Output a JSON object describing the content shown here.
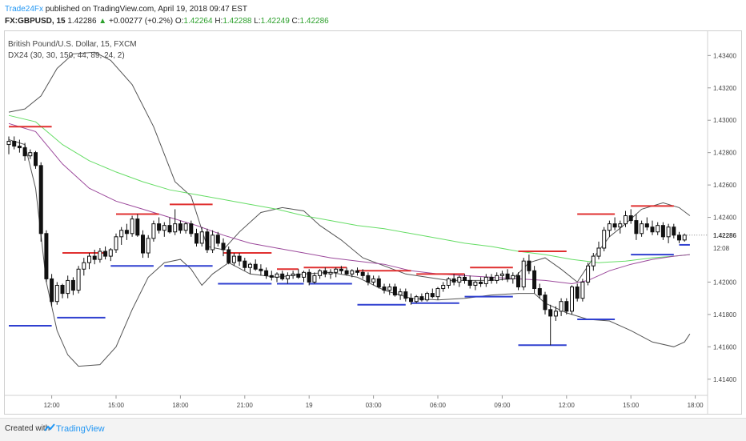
{
  "header": {
    "author": "Trade24Fx",
    "published_text": " published on TradingView.com, April 19, 2018 09:47 EST",
    "symbol": "FX:GBPUSD, 15",
    "last": "1.42286",
    "change": "+0.00277 (+0.2%)",
    "open_label": "O:",
    "open": "1.42264",
    "high_label": "H:",
    "high": "1.42288",
    "low_label": "L:",
    "low": "1.42249",
    "close_label": "C:",
    "close": "1.42286"
  },
  "footer": {
    "created_with": "Created with",
    "brand": "TradingView"
  },
  "chart_data": {
    "type": "candlestick",
    "title": "British Pound/U.S. Dollar, 15, FXCM",
    "indicator": "DX24 (30, 30, 150, 44, 89, 24, 2)",
    "ylim": [
      1.413,
      1.4355
    ],
    "y_ticks": [
      "1.43400",
      "1.43200",
      "1.43000",
      "1.42800",
      "1.42600",
      "1.42400",
      "1.42000",
      "1.41800",
      "1.41600",
      "1.41400"
    ],
    "price_label": "1.42286",
    "time_label": "12:08",
    "x_ticks": [
      "12:00",
      "15:00",
      "18:00",
      "21:00",
      "19",
      "03:00",
      "06:00",
      "09:00",
      "12:00",
      "15:00",
      "18:00"
    ],
    "x_tick_index": [
      8,
      20,
      32,
      44,
      56,
      68,
      80,
      92,
      104,
      116,
      128
    ],
    "colors": {
      "up": "#ffffff",
      "down": "#111111",
      "wick": "#111111",
      "band": "#555555",
      "ema_fast": "#9c4a9c",
      "ema_slow": "#66dd66",
      "resistance": "#e03030",
      "support": "#3040d0"
    },
    "candles": [
      [
        1.4285,
        1.429,
        1.4279,
        1.4287
      ],
      [
        1.4287,
        1.429,
        1.4282,
        1.4284
      ],
      [
        1.4284,
        1.4288,
        1.428,
        1.4283
      ],
      [
        1.4283,
        1.4286,
        1.4275,
        1.4278
      ],
      [
        1.4278,
        1.4282,
        1.4276,
        1.428
      ],
      [
        1.428,
        1.4281,
        1.427,
        1.4272
      ],
      [
        1.4272,
        1.4274,
        1.4225,
        1.423
      ],
      [
        1.423,
        1.4232,
        1.42,
        1.4202
      ],
      [
        1.4202,
        1.4205,
        1.4185,
        1.4188
      ],
      [
        1.4188,
        1.42,
        1.4186,
        1.4198
      ],
      [
        1.4198,
        1.4199,
        1.419,
        1.4193
      ],
      [
        1.4193,
        1.4204,
        1.419,
        1.4201
      ],
      [
        1.4201,
        1.4203,
        1.4192,
        1.4195
      ],
      [
        1.4195,
        1.421,
        1.4193,
        1.4208
      ],
      [
        1.4208,
        1.4215,
        1.4204,
        1.4212
      ],
      [
        1.4212,
        1.4218,
        1.4208,
        1.4216
      ],
      [
        1.4216,
        1.422,
        1.4211,
        1.4214
      ],
      [
        1.4214,
        1.4221,
        1.4212,
        1.4219
      ],
      [
        1.4219,
        1.4222,
        1.4214,
        1.4216
      ],
      [
        1.4216,
        1.4221,
        1.4213,
        1.422
      ],
      [
        1.422,
        1.423,
        1.4218,
        1.4228
      ],
      [
        1.4228,
        1.4234,
        1.4223,
        1.4232
      ],
      [
        1.4232,
        1.4236,
        1.4226,
        1.423
      ],
      [
        1.423,
        1.4241,
        1.4228,
        1.4239
      ],
      [
        1.4239,
        1.4242,
        1.4228,
        1.4229
      ],
      [
        1.4229,
        1.4232,
        1.4215,
        1.4218
      ],
      [
        1.4218,
        1.4229,
        1.4215,
        1.4227
      ],
      [
        1.4227,
        1.4238,
        1.4225,
        1.4236
      ],
      [
        1.4236,
        1.424,
        1.423,
        1.4232
      ],
      [
        1.4232,
        1.4237,
        1.4228,
        1.4235
      ],
      [
        1.4235,
        1.424,
        1.423,
        1.4231
      ],
      [
        1.4231,
        1.4245,
        1.4229,
        1.4236
      ],
      [
        1.4236,
        1.4238,
        1.423,
        1.4232
      ],
      [
        1.4232,
        1.4237,
        1.423,
        1.4236
      ],
      [
        1.4236,
        1.4238,
        1.4228,
        1.423
      ],
      [
        1.423,
        1.4233,
        1.4222,
        1.4224
      ],
      [
        1.4224,
        1.4234,
        1.4222,
        1.4231
      ],
      [
        1.4231,
        1.4233,
        1.4218,
        1.422
      ],
      [
        1.422,
        1.4232,
        1.4218,
        1.4229
      ],
      [
        1.4229,
        1.4231,
        1.4222,
        1.4224
      ],
      [
        1.4224,
        1.4227,
        1.4216,
        1.422
      ],
      [
        1.422,
        1.4222,
        1.4211,
        1.4212
      ],
      [
        1.4212,
        1.4218,
        1.421,
        1.4216
      ],
      [
        1.4216,
        1.4218,
        1.421,
        1.4213
      ],
      [
        1.4213,
        1.4215,
        1.4207,
        1.4209
      ],
      [
        1.4209,
        1.4212,
        1.4205,
        1.4211
      ],
      [
        1.4211,
        1.4214,
        1.4207,
        1.4208
      ],
      [
        1.4208,
        1.4211,
        1.4204,
        1.4207
      ],
      [
        1.4207,
        1.4209,
        1.4202,
        1.4204
      ],
      [
        1.4204,
        1.4207,
        1.4201,
        1.4203
      ],
      [
        1.4203,
        1.4206,
        1.42,
        1.4205
      ],
      [
        1.4205,
        1.4207,
        1.4201,
        1.4202
      ],
      [
        1.4202,
        1.4206,
        1.4199,
        1.4204
      ],
      [
        1.4204,
        1.4207,
        1.4202,
        1.4205
      ],
      [
        1.4205,
        1.4208,
        1.4202,
        1.4203
      ],
      [
        1.4203,
        1.4207,
        1.42,
        1.4206
      ],
      [
        1.4206,
        1.4208,
        1.4198,
        1.42
      ],
      [
        1.42,
        1.4206,
        1.4199,
        1.4204
      ],
      [
        1.4204,
        1.4208,
        1.4202,
        1.4207
      ],
      [
        1.4207,
        1.4209,
        1.4203,
        1.4205
      ],
      [
        1.4205,
        1.4208,
        1.4202,
        1.4206
      ],
      [
        1.4206,
        1.4209,
        1.4203,
        1.4208
      ],
      [
        1.4208,
        1.421,
        1.4205,
        1.4207
      ],
      [
        1.4207,
        1.4209,
        1.4204,
        1.4205
      ],
      [
        1.4205,
        1.4208,
        1.4203,
        1.4207
      ],
      [
        1.4207,
        1.4209,
        1.4204,
        1.4206
      ],
      [
        1.4206,
        1.4208,
        1.4202,
        1.4204
      ],
      [
        1.4204,
        1.4206,
        1.4198,
        1.42
      ],
      [
        1.42,
        1.4204,
        1.4198,
        1.4202
      ],
      [
        1.4202,
        1.4204,
        1.4196,
        1.4197
      ],
      [
        1.4197,
        1.4199,
        1.4193,
        1.4195
      ],
      [
        1.4195,
        1.4199,
        1.4192,
        1.4197
      ],
      [
        1.4197,
        1.4199,
        1.4191,
        1.4192
      ],
      [
        1.4192,
        1.4196,
        1.4189,
        1.4194
      ],
      [
        1.4194,
        1.4196,
        1.4188,
        1.419
      ],
      [
        1.419,
        1.4193,
        1.4186,
        1.4188
      ],
      [
        1.4188,
        1.4192,
        1.4187,
        1.4191
      ],
      [
        1.4191,
        1.4193,
        1.4188,
        1.4189
      ],
      [
        1.4189,
        1.4194,
        1.4188,
        1.4193
      ],
      [
        1.4193,
        1.4196,
        1.419,
        1.4191
      ],
      [
        1.4191,
        1.4197,
        1.4189,
        1.4196
      ],
      [
        1.4196,
        1.42,
        1.4194,
        1.4198
      ],
      [
        1.4198,
        1.4203,
        1.4196,
        1.4202
      ],
      [
        1.4202,
        1.4205,
        1.4198,
        1.42
      ],
      [
        1.42,
        1.4204,
        1.4197,
        1.4203
      ],
      [
        1.4203,
        1.4205,
        1.4199,
        1.4201
      ],
      [
        1.4201,
        1.4204,
        1.4196,
        1.4198
      ],
      [
        1.4198,
        1.4201,
        1.4195,
        1.42
      ],
      [
        1.42,
        1.4203,
        1.4197,
        1.4199
      ],
      [
        1.4199,
        1.4205,
        1.4197,
        1.4203
      ],
      [
        1.4203,
        1.4205,
        1.4199,
        1.4201
      ],
      [
        1.4201,
        1.4206,
        1.4199,
        1.4204
      ],
      [
        1.4204,
        1.4207,
        1.4201,
        1.4205
      ],
      [
        1.4205,
        1.4208,
        1.42,
        1.4202
      ],
      [
        1.4202,
        1.4206,
        1.4199,
        1.4204
      ],
      [
        1.4204,
        1.4206,
        1.4195,
        1.4197
      ],
      [
        1.4197,
        1.4215,
        1.4195,
        1.4213
      ],
      [
        1.4213,
        1.4217,
        1.4205,
        1.4207
      ],
      [
        1.4207,
        1.421,
        1.4193,
        1.4196
      ],
      [
        1.4196,
        1.4199,
        1.419,
        1.4192
      ],
      [
        1.4192,
        1.4194,
        1.418,
        1.4183
      ],
      [
        1.4183,
        1.4186,
        1.4161,
        1.4179
      ],
      [
        1.4179,
        1.4185,
        1.4176,
        1.4182
      ],
      [
        1.4182,
        1.419,
        1.4179,
        1.4188
      ],
      [
        1.4188,
        1.419,
        1.418,
        1.4182
      ],
      [
        1.4182,
        1.4198,
        1.418,
        1.4197
      ],
      [
        1.4197,
        1.4199,
        1.4188,
        1.419
      ],
      [
        1.419,
        1.4202,
        1.4188,
        1.42
      ],
      [
        1.42,
        1.4212,
        1.4198,
        1.421
      ],
      [
        1.421,
        1.4218,
        1.4207,
        1.4216
      ],
      [
        1.4216,
        1.4225,
        1.4214,
        1.4221
      ],
      [
        1.4221,
        1.4234,
        1.4219,
        1.4232
      ],
      [
        1.4232,
        1.4238,
        1.4228,
        1.4236
      ],
      [
        1.4236,
        1.424,
        1.4232,
        1.4234
      ],
      [
        1.4234,
        1.4238,
        1.423,
        1.4236
      ],
      [
        1.4236,
        1.4244,
        1.4234,
        1.4241
      ],
      [
        1.4241,
        1.4245,
        1.4236,
        1.4238
      ],
      [
        1.4238,
        1.4242,
        1.4226,
        1.423
      ],
      [
        1.423,
        1.4238,
        1.4228,
        1.4236
      ],
      [
        1.4236,
        1.424,
        1.4232,
        1.4234
      ],
      [
        1.4234,
        1.4238,
        1.4229,
        1.4231
      ],
      [
        1.4231,
        1.4237,
        1.4229,
        1.4235
      ],
      [
        1.4235,
        1.4237,
        1.4226,
        1.4228
      ],
      [
        1.4228,
        1.4236,
        1.4224,
        1.4234
      ],
      [
        1.4234,
        1.4236,
        1.4227,
        1.4229
      ],
      [
        1.4229,
        1.4231,
        1.4224,
        1.4226
      ],
      [
        1.4226,
        1.423,
        1.4225,
        1.4229
      ]
    ],
    "upper_band": [
      [
        0,
        1.4305
      ],
      [
        3,
        1.4307
      ],
      [
        6,
        1.4315
      ],
      [
        9,
        1.4332
      ],
      [
        12,
        1.4341
      ],
      [
        16,
        1.4342
      ],
      [
        19,
        1.4337
      ],
      [
        23,
        1.4322
      ],
      [
        27,
        1.4296
      ],
      [
        31,
        1.4262
      ],
      [
        34,
        1.4253
      ],
      [
        37,
        1.4222
      ],
      [
        40,
        1.422
      ],
      [
        43,
        1.4231
      ],
      [
        47,
        1.4243
      ],
      [
        51,
        1.4246
      ],
      [
        55,
        1.4244
      ],
      [
        58,
        1.4235
      ],
      [
        62,
        1.4226
      ],
      [
        66,
        1.4215
      ],
      [
        70,
        1.421
      ],
      [
        74,
        1.4205
      ],
      [
        78,
        1.4203
      ],
      [
        82,
        1.4201
      ],
      [
        86,
        1.4201
      ],
      [
        90,
        1.4201
      ],
      [
        94,
        1.4202
      ],
      [
        97,
        1.4212
      ],
      [
        100,
        1.4215
      ],
      [
        103,
        1.4208
      ],
      [
        106,
        1.42
      ],
      [
        109,
        1.4215
      ],
      [
        112,
        1.4228
      ],
      [
        115,
        1.4236
      ],
      [
        118,
        1.4245
      ],
      [
        122,
        1.4249
      ],
      [
        125,
        1.4246
      ],
      [
        127,
        1.4241
      ]
    ],
    "lower_band": [
      [
        0,
        1.4288
      ],
      [
        3,
        1.4285
      ],
      [
        5,
        1.4258
      ],
      [
        7,
        1.42
      ],
      [
        9,
        1.417
      ],
      [
        11,
        1.4155
      ],
      [
        13,
        1.4148
      ],
      [
        17,
        1.4149
      ],
      [
        20,
        1.416
      ],
      [
        23,
        1.4183
      ],
      [
        26,
        1.4203
      ],
      [
        29,
        1.4212
      ],
      [
        32,
        1.4214
      ],
      [
        34,
        1.4208
      ],
      [
        36,
        1.4198
      ],
      [
        38,
        1.4205
      ],
      [
        41,
        1.4212
      ],
      [
        45,
        1.4205
      ],
      [
        50,
        1.4203
      ],
      [
        55,
        1.4205
      ],
      [
        60,
        1.4206
      ],
      [
        65,
        1.4203
      ],
      [
        70,
        1.4195
      ],
      [
        75,
        1.419
      ],
      [
        80,
        1.4189
      ],
      [
        85,
        1.419
      ],
      [
        90,
        1.4192
      ],
      [
        95,
        1.4193
      ],
      [
        98,
        1.4193
      ],
      [
        100,
        1.4187
      ],
      [
        104,
        1.4181
      ],
      [
        108,
        1.4177
      ],
      [
        112,
        1.4176
      ],
      [
        116,
        1.417
      ],
      [
        120,
        1.4163
      ],
      [
        124,
        1.416
      ],
      [
        126,
        1.4163
      ],
      [
        127,
        1.4168
      ]
    ],
    "ema_fast": [
      [
        0,
        1.4298
      ],
      [
        5,
        1.4293
      ],
      [
        10,
        1.4273
      ],
      [
        15,
        1.4258
      ],
      [
        20,
        1.425
      ],
      [
        25,
        1.4245
      ],
      [
        30,
        1.424
      ],
      [
        35,
        1.4235
      ],
      [
        40,
        1.4229
      ],
      [
        45,
        1.4224
      ],
      [
        50,
        1.4221
      ],
      [
        55,
        1.4218
      ],
      [
        60,
        1.4215
      ],
      [
        65,
        1.4213
      ],
      [
        70,
        1.4211
      ],
      [
        75,
        1.4207
      ],
      [
        80,
        1.4205
      ],
      [
        85,
        1.4204
      ],
      [
        90,
        1.4203
      ],
      [
        95,
        1.4202
      ],
      [
        100,
        1.4201
      ],
      [
        105,
        1.4199
      ],
      [
        108,
        1.4201
      ],
      [
        112,
        1.4207
      ],
      [
        116,
        1.4211
      ],
      [
        120,
        1.4214
      ],
      [
        124,
        1.4216
      ],
      [
        127,
        1.4217
      ]
    ],
    "ema_slow": [
      [
        0,
        1.4303
      ],
      [
        5,
        1.4299
      ],
      [
        10,
        1.4285
      ],
      [
        15,
        1.4275
      ],
      [
        20,
        1.4268
      ],
      [
        25,
        1.4262
      ],
      [
        30,
        1.4257
      ],
      [
        35,
        1.4254
      ],
      [
        40,
        1.4251
      ],
      [
        45,
        1.4248
      ],
      [
        50,
        1.4245
      ],
      [
        55,
        1.4241
      ],
      [
        60,
        1.4238
      ],
      [
        65,
        1.4235
      ],
      [
        70,
        1.4233
      ],
      [
        75,
        1.423
      ],
      [
        80,
        1.4227
      ],
      [
        85,
        1.4224
      ],
      [
        90,
        1.4222
      ],
      [
        95,
        1.4219
      ],
      [
        100,
        1.4217
      ],
      [
        105,
        1.4214
      ],
      [
        110,
        1.4212
      ],
      [
        115,
        1.4213
      ],
      [
        120,
        1.4215
      ],
      [
        124,
        1.4216
      ],
      [
        127,
        1.4217
      ]
    ],
    "resistance_levels": [
      [
        0,
        8,
        1.4296
      ],
      [
        10,
        18,
        1.4218
      ],
      [
        20,
        28,
        1.4242
      ],
      [
        30,
        38,
        1.4248
      ],
      [
        40,
        49,
        1.4218
      ],
      [
        50,
        54,
        1.4208
      ],
      [
        55,
        63,
        1.4209
      ],
      [
        65,
        75,
        1.4207
      ],
      [
        76,
        85,
        1.4205
      ],
      [
        86,
        94,
        1.4209
      ],
      [
        95,
        104,
        1.4219
      ],
      [
        106,
        113,
        1.4242
      ],
      [
        116,
        124,
        1.4247
      ]
    ],
    "support_levels": [
      [
        0,
        8,
        1.4173
      ],
      [
        9,
        18,
        1.4178
      ],
      [
        19,
        27,
        1.421
      ],
      [
        29,
        38,
        1.421
      ],
      [
        39,
        49,
        1.4199
      ],
      [
        50,
        55,
        1.4199
      ],
      [
        56,
        64,
        1.4199
      ],
      [
        65,
        74,
        1.4186
      ],
      [
        75,
        84,
        1.4187
      ],
      [
        85,
        94,
        1.4191
      ],
      [
        95,
        104,
        1.4161
      ],
      [
        106,
        113,
        1.4177
      ],
      [
        116,
        124,
        1.4217
      ],
      [
        125,
        127,
        1.4223
      ]
    ]
  }
}
